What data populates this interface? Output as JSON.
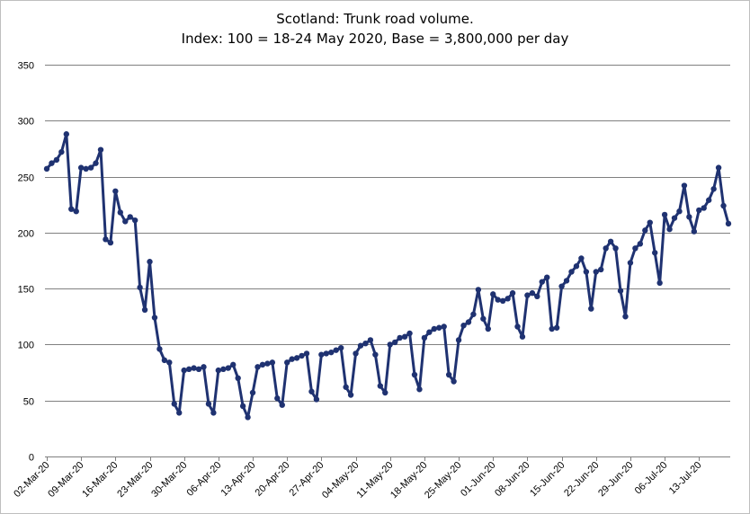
{
  "chart_data": {
    "type": "line",
    "title": "Scotland: Trunk road volume.",
    "subtitle": "Index: 100 = 18-24 May 2020, Base = 3,800,000 per day",
    "xlabel": "",
    "ylabel": "",
    "ylim": [
      0,
      350
    ],
    "yticks": [
      0,
      50,
      100,
      150,
      200,
      250,
      300,
      350
    ],
    "grid": true,
    "legend": "none",
    "series_color": "#1f3271",
    "xtick_labels": [
      "02-Mar-20",
      "09-Mar-20",
      "16-Mar-20",
      "23-Mar-20",
      "30-Mar-20",
      "06-Apr-20",
      "13-Apr-20",
      "20-Apr-20",
      "27-Apr-20",
      "04-May-20",
      "11-May-20",
      "18-May-20",
      "25-May-20",
      "01-Jun-20",
      "08-Jun-20",
      "15-Jun-20",
      "22-Jun-20",
      "29-Jun-20",
      "06-Jul-20",
      "13-Jul-20"
    ],
    "x_start": "02-Mar-20",
    "series": [
      {
        "values": [
          257,
          262,
          265,
          272,
          288,
          221,
          219,
          258,
          257,
          258,
          262,
          274,
          194,
          191,
          237,
          218,
          210,
          214,
          211,
          151,
          131,
          174,
          124,
          96,
          86,
          84,
          47,
          39,
          77,
          78,
          79,
          78,
          80,
          47,
          39,
          77,
          78,
          79,
          82,
          70,
          45,
          35,
          57,
          80,
          82,
          83,
          84,
          52,
          46,
          84,
          87,
          88,
          90,
          92,
          58,
          51,
          91,
          92,
          93,
          95,
          97,
          62,
          55,
          92,
          99,
          101,
          104,
          91,
          63,
          57,
          100,
          102,
          106,
          107,
          110,
          73,
          60,
          106,
          111,
          114,
          115,
          116,
          73,
          67,
          104,
          117,
          120,
          127,
          149,
          123,
          114,
          145,
          140,
          139,
          141,
          146,
          116,
          107,
          144,
          146,
          143,
          156,
          160,
          114,
          115,
          152,
          157,
          165,
          170,
          177,
          165,
          132,
          165,
          167,
          186,
          192,
          186,
          148,
          125,
          173,
          186,
          190,
          202,
          209,
          182,
          155,
          216,
          203,
          213,
          219,
          242,
          214,
          201,
          220,
          222,
          229,
          239,
          258,
          224,
          208
        ]
      }
    ]
  }
}
